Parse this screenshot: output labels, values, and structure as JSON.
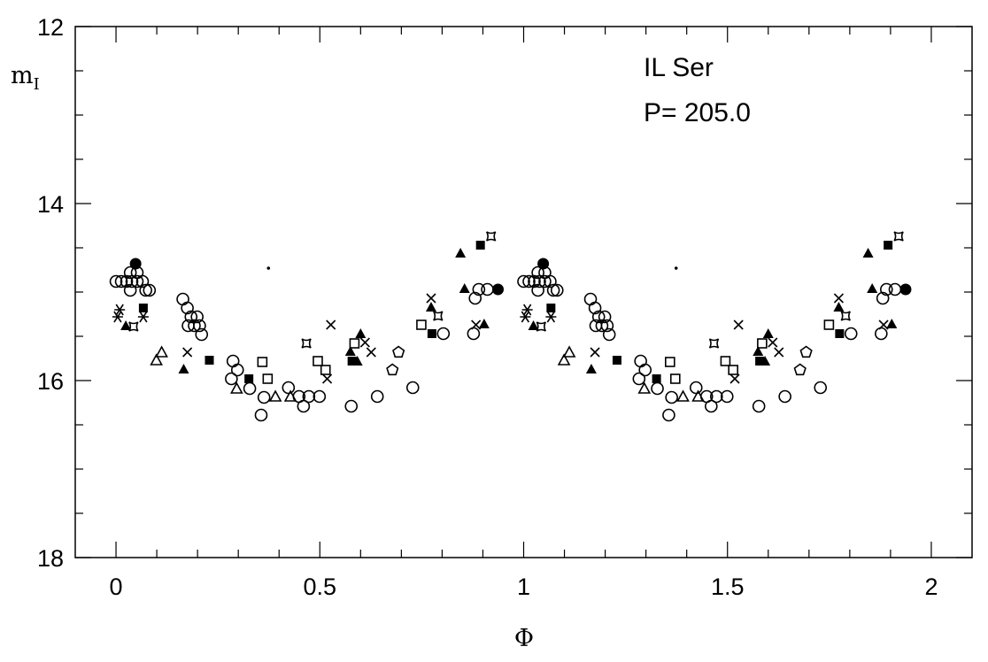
{
  "chart_data": {
    "type": "scatter",
    "title": "",
    "annotations": [
      "IL Ser",
      "P= 205.0"
    ],
    "xlabel": "Φ",
    "ylabel": {
      "main": "m",
      "sub": "I"
    },
    "xlim": [
      -0.1,
      2.1
    ],
    "ylim": [
      18,
      12
    ],
    "y_inverted": true,
    "phase_repeated_twice": true,
    "x_ticks": [
      "0",
      "0.5",
      "1",
      "1.5",
      "2"
    ],
    "x_tick_values": [
      0,
      0.5,
      1,
      1.5,
      2
    ],
    "y_ticks": [
      "12",
      "14",
      "16",
      "18"
    ],
    "y_tick_values": [
      12,
      14,
      16,
      18
    ],
    "grid": false,
    "color": "#000000",
    "series": [
      {
        "marker": "open-circle",
        "points": [
          [
            0.0,
            14.88
          ],
          [
            0.013,
            14.88
          ],
          [
            0.026,
            14.88
          ],
          [
            0.039,
            14.88
          ],
          [
            0.052,
            14.88
          ],
          [
            0.065,
            14.88
          ],
          [
            0.035,
            14.78
          ],
          [
            0.052,
            14.78
          ],
          [
            0.035,
            14.98
          ],
          [
            0.073,
            14.98
          ],
          [
            0.082,
            14.98
          ],
          [
            0.164,
            15.08
          ],
          [
            0.175,
            15.18
          ],
          [
            0.184,
            15.28
          ],
          [
            0.199,
            15.28
          ],
          [
            0.177,
            15.38
          ],
          [
            0.192,
            15.38
          ],
          [
            0.205,
            15.38
          ],
          [
            0.21,
            15.48
          ],
          [
            0.287,
            15.78
          ],
          [
            0.298,
            15.88
          ],
          [
            0.283,
            15.98
          ],
          [
            0.328,
            16.09
          ],
          [
            0.363,
            16.19
          ],
          [
            0.356,
            16.39
          ],
          [
            0.423,
            16.08
          ],
          [
            0.449,
            16.18
          ],
          [
            0.46,
            16.29
          ],
          [
            0.473,
            16.18
          ],
          [
            0.499,
            16.18
          ],
          [
            0.577,
            16.29
          ],
          [
            0.641,
            16.18
          ],
          [
            0.728,
            16.08
          ],
          [
            0.803,
            15.47
          ],
          [
            0.877,
            15.47
          ],
          [
            0.881,
            15.07
          ],
          [
            0.89,
            14.97
          ],
          [
            0.911,
            14.97
          ]
        ]
      },
      {
        "marker": "filled-circle",
        "points": [
          [
            0.048,
            14.68
          ],
          [
            0.937,
            14.97
          ]
        ]
      },
      {
        "marker": "open-triangle",
        "points": [
          [
            0.099,
            15.77
          ],
          [
            0.112,
            15.68
          ],
          [
            0.296,
            16.09
          ],
          [
            0.391,
            16.18
          ],
          [
            0.428,
            16.18
          ]
        ]
      },
      {
        "marker": "filled-triangle",
        "points": [
          [
            0.024,
            15.38
          ],
          [
            0.166,
            15.87
          ],
          [
            0.575,
            15.67
          ],
          [
            0.592,
            15.78
          ],
          [
            0.6,
            15.47
          ],
          [
            0.773,
            15.17
          ],
          [
            0.845,
            14.56
          ],
          [
            0.855,
            14.96
          ],
          [
            0.903,
            15.36
          ]
        ]
      },
      {
        "marker": "open-square",
        "points": [
          [
            0.359,
            15.79
          ],
          [
            0.372,
            15.98
          ],
          [
            0.495,
            15.78
          ],
          [
            0.514,
            15.88
          ],
          [
            0.585,
            15.58
          ],
          [
            0.749,
            15.37
          ]
        ]
      },
      {
        "marker": "filled-square",
        "points": [
          [
            0.067,
            15.18
          ],
          [
            0.229,
            15.77
          ],
          [
            0.326,
            15.98
          ],
          [
            0.579,
            15.78
          ],
          [
            0.775,
            15.47
          ],
          [
            0.894,
            14.47
          ]
        ]
      },
      {
        "marker": "cross",
        "points": [
          [
            0.175,
            15.68
          ],
          [
            0.518,
            15.98
          ],
          [
            0.527,
            15.37
          ],
          [
            0.611,
            15.57
          ],
          [
            0.626,
            15.68
          ],
          [
            0.773,
            15.07
          ],
          [
            0.883,
            15.37
          ]
        ]
      },
      {
        "marker": "asterisk",
        "points": [
          [
            0.009,
            15.2
          ],
          [
            0.004,
            15.28
          ],
          [
            0.067,
            15.28
          ]
        ]
      },
      {
        "marker": "pentagon",
        "points": [
          [
            0.678,
            15.88
          ],
          [
            0.693,
            15.68
          ]
        ]
      },
      {
        "marker": "star-square",
        "points": [
          [
            0.043,
            15.39
          ],
          [
            0.467,
            15.58
          ],
          [
            0.79,
            15.27
          ],
          [
            0.92,
            14.37
          ]
        ]
      },
      {
        "marker": "dot",
        "points": [
          [
            0.374,
            14.73
          ]
        ]
      }
    ]
  }
}
